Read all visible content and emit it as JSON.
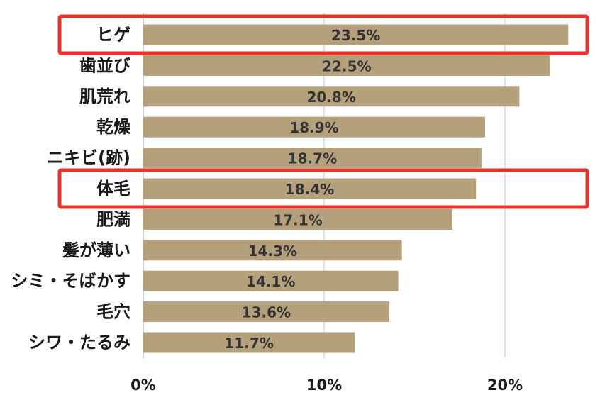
{
  "chart_data": {
    "type": "bar",
    "orientation": "horizontal",
    "categories": [
      "ヒゲ",
      "歯並び",
      "肌荒れ",
      "乾燥",
      "ニキビ(跡)",
      "体毛",
      "肥満",
      "髪が薄い",
      "シミ・そばかす",
      "毛穴",
      "シワ・たるみ"
    ],
    "values": [
      23.5,
      22.5,
      20.8,
      18.9,
      18.7,
      18.4,
      17.1,
      14.3,
      14.1,
      13.6,
      11.7
    ],
    "value_labels": [
      "23.5%",
      "22.5%",
      "20.8%",
      "18.9%",
      "18.7%",
      "18.4%",
      "17.1%",
      "14.3%",
      "14.1%",
      "13.6%",
      "11.7%"
    ],
    "title": "",
    "xlabel": "",
    "ylabel": "",
    "xlim": [
      0,
      25
    ],
    "xticks": [
      0,
      10,
      20
    ],
    "xtick_labels": [
      "0%",
      "10%",
      "20%"
    ],
    "grid": "vertical",
    "legend": "none",
    "highlighted_categories": [
      "ヒゲ",
      "体毛"
    ],
    "colors": {
      "bar": "#b5a07c",
      "highlight": "#e8332a",
      "grid": "#d9d9d9"
    }
  }
}
